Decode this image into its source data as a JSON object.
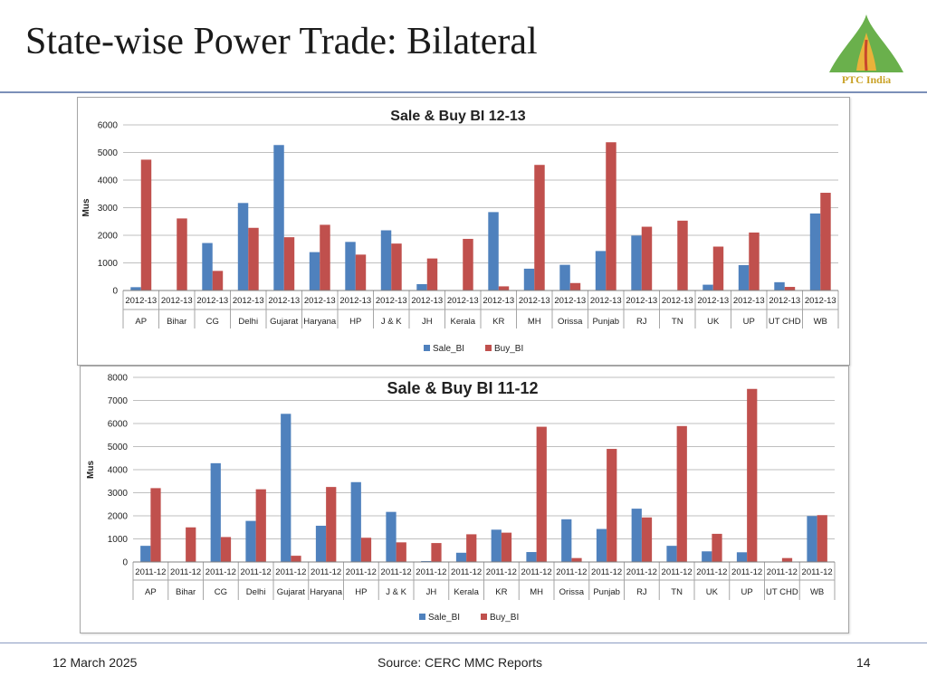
{
  "slide": {
    "title": "State-wise Power Trade: Bilateral",
    "logo_text": "PTC India",
    "date": "12 March 2025",
    "source": "Source: CERC MMC Reports",
    "page_number": "14"
  },
  "colors": {
    "sale": "#4f81bd",
    "buy": "#c0504d",
    "logo_green": "#6ab04c",
    "logo_gold": "#c9a227"
  },
  "chart_data": [
    {
      "type": "bar",
      "title": "Sale & Buy BI 12-13",
      "ylabel": "Mus",
      "xlabel": "",
      "ylim": [
        0,
        6000
      ],
      "yticks": [
        0,
        1000,
        2000,
        3000,
        4000,
        5000,
        6000
      ],
      "grid": true,
      "legend": "bottom",
      "period_label": "2012-13",
      "categories": [
        "AP",
        "Bihar",
        "CG",
        "Delhi",
        "Gujarat",
        "Haryana",
        "HP",
        "J & K",
        "JH",
        "Kerala",
        "KR",
        "MH",
        "Orissa",
        "Punjab",
        "RJ",
        "TN",
        "UK",
        "UP",
        "UT CHD",
        "WB"
      ],
      "series": [
        {
          "name": "Sale_BI",
          "values": [
            120,
            0,
            1720,
            3170,
            5270,
            1390,
            1760,
            2180,
            230,
            0,
            2840,
            790,
            930,
            1430,
            1990,
            0,
            210,
            920,
            300,
            2790
          ]
        },
        {
          "name": "Buy_BI",
          "values": [
            4740,
            2610,
            710,
            2270,
            1930,
            2380,
            1300,
            1700,
            1160,
            1870,
            150,
            4550,
            270,
            5370,
            2310,
            2530,
            1590,
            2100,
            130,
            3540
          ]
        }
      ]
    },
    {
      "type": "bar",
      "title": "Sale & Buy BI 11-12",
      "ylabel": "Mus",
      "xlabel": "",
      "ylim": [
        0,
        8000
      ],
      "yticks": [
        0,
        1000,
        2000,
        3000,
        4000,
        5000,
        6000,
        7000,
        8000
      ],
      "grid": true,
      "legend": "bottom",
      "period_label": "2011-12",
      "categories": [
        "AP",
        "Bihar",
        "CG",
        "Delhi",
        "Gujarat",
        "Haryana",
        "HP",
        "J & K",
        "JH",
        "Kerala",
        "KR",
        "MH",
        "Orissa",
        "Punjab",
        "RJ",
        "TN",
        "UK",
        "UP",
        "UT CHD",
        "WB"
      ],
      "series": [
        {
          "name": "Sale_BI",
          "values": [
            700,
            0,
            4280,
            1780,
            6420,
            1570,
            3460,
            2170,
            40,
            400,
            1400,
            430,
            1850,
            1430,
            2310,
            700,
            460,
            420,
            0,
            1990
          ]
        },
        {
          "name": "Buy_BI",
          "values": [
            3200,
            1500,
            1080,
            3150,
            270,
            3250,
            1050,
            850,
            820,
            1200,
            1270,
            5860,
            170,
            4900,
            1930,
            5890,
            1220,
            7500,
            170,
            2030
          ]
        }
      ]
    }
  ]
}
